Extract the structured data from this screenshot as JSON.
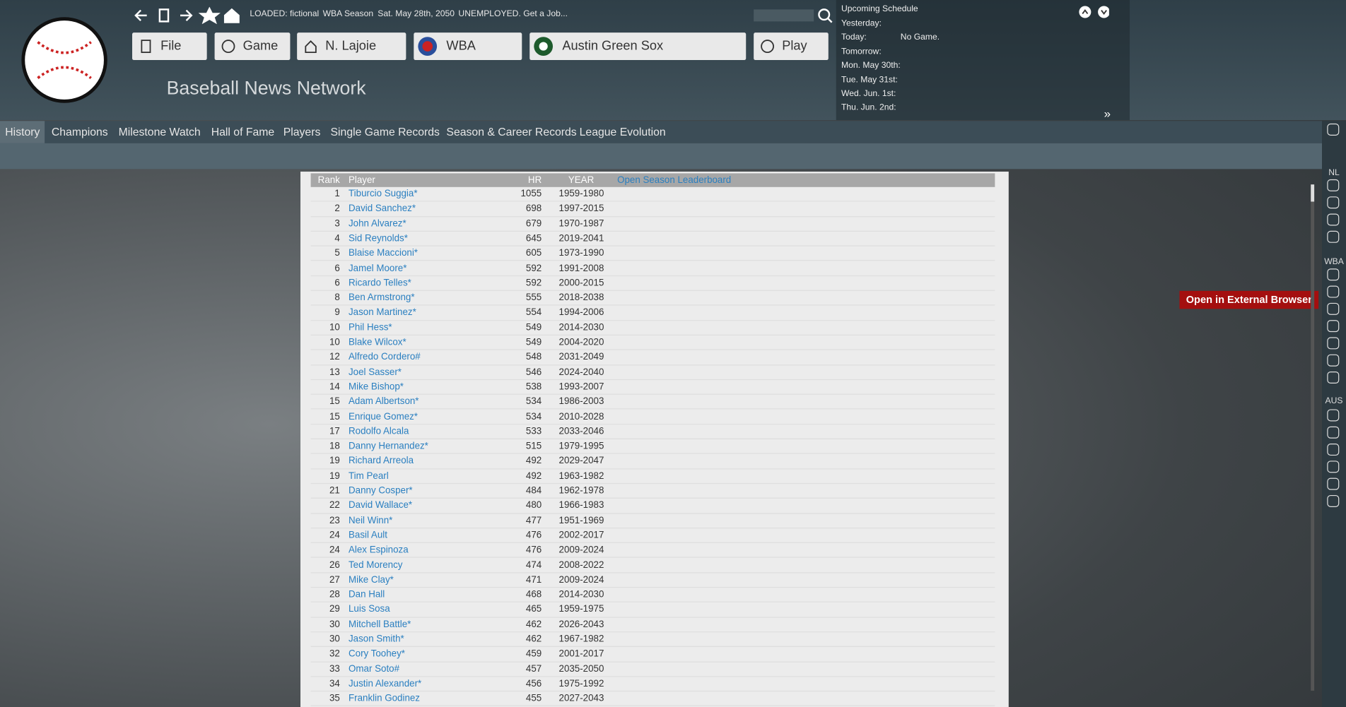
{
  "toolbar": {
    "status": [
      "LOADED: fictional",
      "WBA Season",
      "Sat. May 28th, 2050",
      "UNEMPLOYED. Get a Job..."
    ],
    "buttons": [
      "File",
      "Game",
      "N. Lajoie",
      "WBA",
      "Austin Green Sox",
      "Play"
    ]
  },
  "header": {
    "title": "Baseball News Network"
  },
  "schedule": {
    "title": "Upcoming Schedule",
    "rows": [
      [
        "Yesterday:",
        ""
      ],
      [
        "Today:",
        "No Game."
      ],
      [
        "Tomorrow:",
        ""
      ],
      [
        "Mon. May 30th:",
        ""
      ],
      [
        "Tue. May 31st:",
        ""
      ],
      [
        "Wed. Jun. 1st:",
        ""
      ],
      [
        "Thu. Jun. 2nd:",
        ""
      ]
    ]
  },
  "tabs": [
    "History",
    "Champions",
    "Milestone Watch",
    "Hall of Fame",
    "Players",
    "Single Game Records",
    "Season & Career Records",
    "League Evolution"
  ],
  "external_button": "Open in External Browser",
  "sidebar": {
    "labels": [
      "NL",
      "WBA",
      "AUS"
    ]
  },
  "table": {
    "headers": [
      "Rank",
      "Player",
      "HR",
      "YEAR"
    ],
    "link": "Open Season Leaderboard",
    "rows": [
      [
        1,
        "Tiburcio Suggia*",
        1055,
        "1959-1980"
      ],
      [
        2,
        "David Sanchez*",
        698,
        "1997-2015"
      ],
      [
        3,
        "John Alvarez*",
        679,
        "1970-1987"
      ],
      [
        4,
        "Sid Reynolds*",
        645,
        "2019-2041"
      ],
      [
        5,
        "Blaise Maccioni*",
        605,
        "1973-1990"
      ],
      [
        6,
        "Jamel Moore*",
        592,
        "1991-2008"
      ],
      [
        6,
        "Ricardo Telles*",
        592,
        "2000-2015"
      ],
      [
        8,
        "Ben Armstrong*",
        555,
        "2018-2038"
      ],
      [
        9,
        "Jason Martinez*",
        554,
        "1994-2006"
      ],
      [
        10,
        "Phil Hess*",
        549,
        "2014-2030"
      ],
      [
        10,
        "Blake Wilcox*",
        549,
        "2004-2020"
      ],
      [
        12,
        "Alfredo Cordero#",
        548,
        "2031-2049"
      ],
      [
        13,
        "Joel Sasser*",
        546,
        "2024-2040"
      ],
      [
        14,
        "Mike Bishop*",
        538,
        "1993-2007"
      ],
      [
        15,
        "Adam Albertson*",
        534,
        "1986-2003"
      ],
      [
        15,
        "Enrique Gomez*",
        534,
        "2010-2028"
      ],
      [
        17,
        "Rodolfo Alcala",
        533,
        "2033-2046"
      ],
      [
        18,
        "Danny Hernandez*",
        515,
        "1979-1995"
      ],
      [
        19,
        "Richard Arreola",
        492,
        "2029-2047"
      ],
      [
        19,
        "Tim Pearl",
        492,
        "1963-1982"
      ],
      [
        21,
        "Danny Cosper*",
        484,
        "1962-1978"
      ],
      [
        22,
        "David Wallace*",
        480,
        "1966-1983"
      ],
      [
        23,
        "Neil Winn*",
        477,
        "1951-1969"
      ],
      [
        24,
        "Basil Ault",
        476,
        "2002-2017"
      ],
      [
        24,
        "Alex Espinoza",
        476,
        "2009-2024"
      ],
      [
        26,
        "Ted Morency",
        474,
        "2008-2022"
      ],
      [
        27,
        "Mike Clay*",
        471,
        "2009-2024"
      ],
      [
        28,
        "Dan Hall",
        468,
        "2014-2030"
      ],
      [
        29,
        "Luis Sosa",
        465,
        "1959-1975"
      ],
      [
        30,
        "Mitchell Battle*",
        462,
        "2026-2043"
      ],
      [
        30,
        "Jason Smith*",
        462,
        "1967-1982"
      ],
      [
        32,
        "Cory Toohey*",
        459,
        "2001-2017"
      ],
      [
        33,
        "Omar Soto#",
        457,
        "2035-2050"
      ],
      [
        34,
        "Justin Alexander*",
        456,
        "1975-1992"
      ],
      [
        35,
        "Franklin Godinez",
        455,
        "2027-2043"
      ]
    ]
  }
}
